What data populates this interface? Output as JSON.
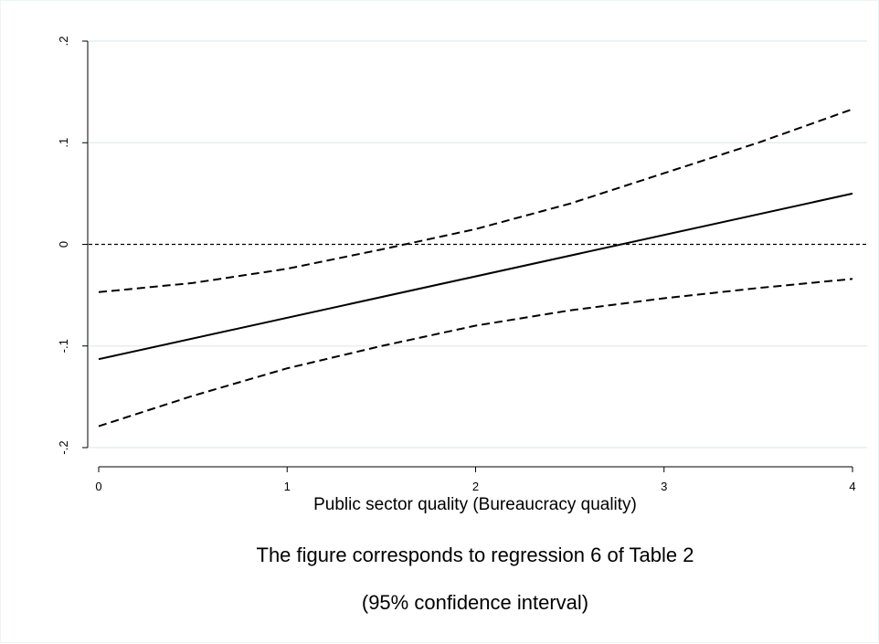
{
  "chart_data": {
    "type": "line",
    "xlabel": "Public sector quality (Bureaucracy quality)",
    "ylabel": "",
    "xlim": [
      0,
      4
    ],
    "ylim": [
      -0.2,
      0.2
    ],
    "x_ticks": [
      0,
      1,
      2,
      3,
      4
    ],
    "x_tick_labels": [
      "0",
      "1",
      "2",
      "3",
      "4"
    ],
    "y_ticks": [
      -0.2,
      -0.1,
      0,
      0.1,
      0.2
    ],
    "y_tick_labels": [
      "-.2",
      "-.1",
      "0",
      ".1",
      ".2"
    ],
    "grid": true,
    "reference_line_y": 0,
    "series": [
      {
        "style": "solid",
        "x": [
          0,
          4
        ],
        "y": [
          -0.113,
          0.05
        ]
      },
      {
        "style": "dashed",
        "x": [
          0,
          0.5,
          1,
          1.5,
          2,
          2.5,
          3,
          3.5,
          4
        ],
        "y": [
          -0.047,
          -0.038,
          -0.024,
          -0.005,
          0.015,
          0.04,
          0.07,
          0.1,
          0.133
        ]
      },
      {
        "style": "dashed",
        "x": [
          0,
          0.5,
          1,
          1.5,
          2,
          2.5,
          3,
          3.5,
          4
        ],
        "y": [
          -0.179,
          -0.149,
          -0.122,
          -0.1,
          -0.08,
          -0.065,
          -0.053,
          -0.043,
          -0.034
        ]
      }
    ],
    "captions": [
      "The figure corresponds to regression 6 of Table 2",
      "(95% confidence interval)"
    ],
    "colors": {
      "line": "#000000",
      "grid": "#e6eef2",
      "frame_border": "#eef3f6"
    }
  }
}
